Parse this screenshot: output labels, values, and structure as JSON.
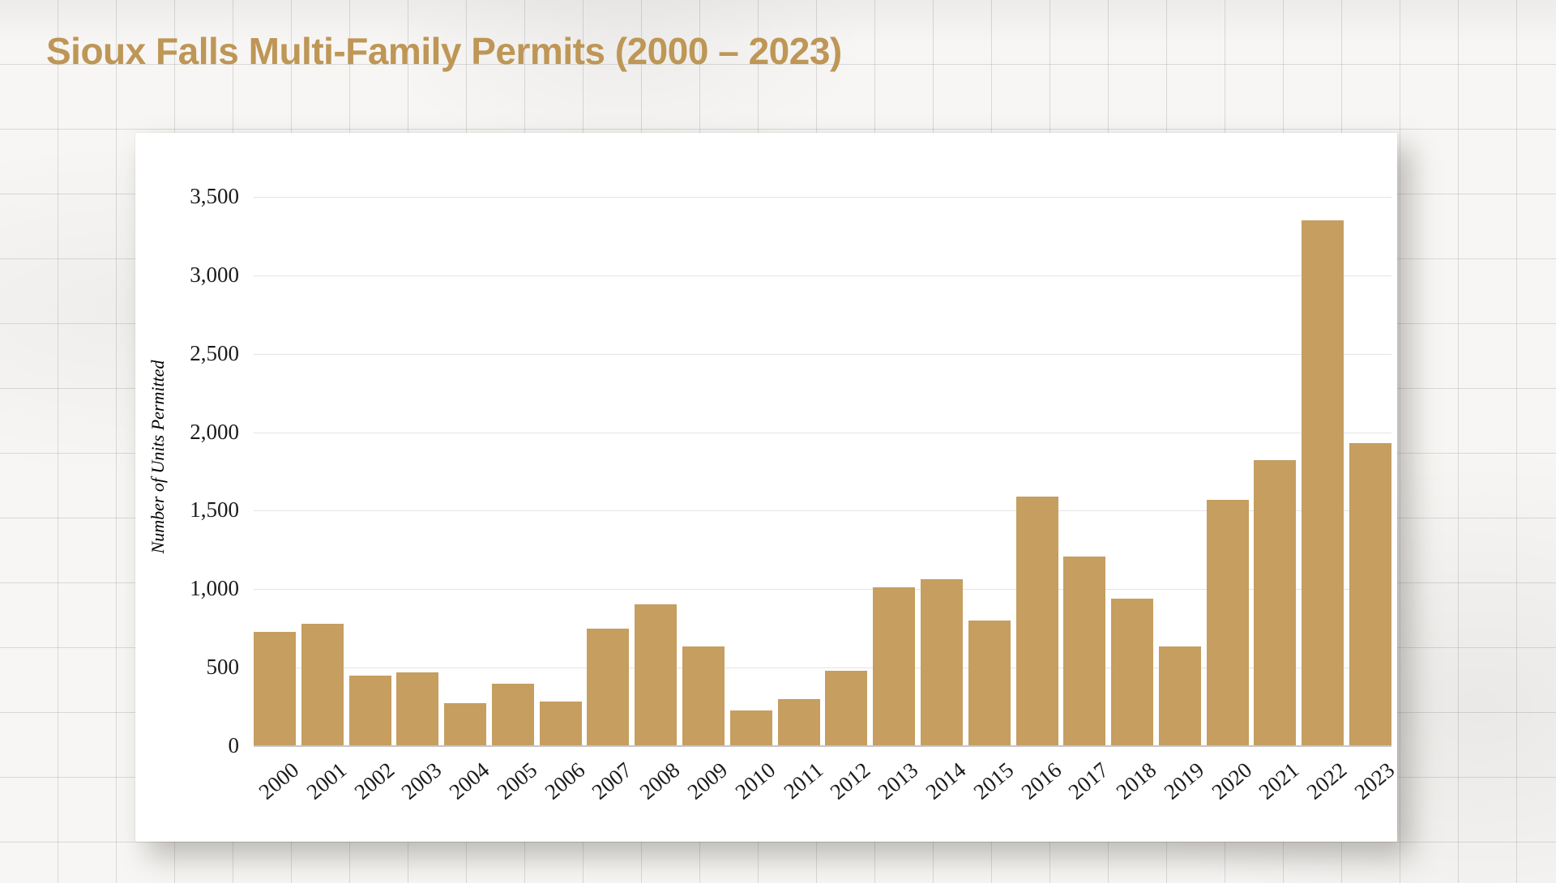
{
  "page": {
    "paper_color": "#F7F6F4",
    "card_color": "#FFFFFF",
    "title_color": "#BE9656"
  },
  "chart_data": {
    "type": "bar",
    "title": "Sioux Falls Multi-Family Permits (2000 – 2023)",
    "xlabel": "",
    "ylabel": "Number of Units Permitted",
    "categories": [
      "2000",
      "2001",
      "2002",
      "2003",
      "2004",
      "2005",
      "2006",
      "2007",
      "2008",
      "2009",
      "2010",
      "2011",
      "2012",
      "2013",
      "2014",
      "2015",
      "2016",
      "2017",
      "2018",
      "2019",
      "2020",
      "2021",
      "2022",
      "2023"
    ],
    "values": [
      730,
      780,
      450,
      470,
      275,
      395,
      285,
      750,
      905,
      635,
      225,
      300,
      480,
      1010,
      1065,
      800,
      1590,
      1210,
      940,
      635,
      1570,
      1820,
      3350,
      1930
    ],
    "ylim": [
      0,
      3500
    ],
    "ytick_interval": 500,
    "ytick_labels": [
      "0",
      "500",
      "1,000",
      "1,500",
      "2,000",
      "2,500",
      "3,000",
      "3,500"
    ],
    "grid": "horizontal",
    "legend": "none",
    "bar_color": "#C59E60",
    "gridline_color": "#E3E3E3",
    "baseline_color": "#C6C6C6",
    "tick_label_color": "#1B1B1B"
  }
}
